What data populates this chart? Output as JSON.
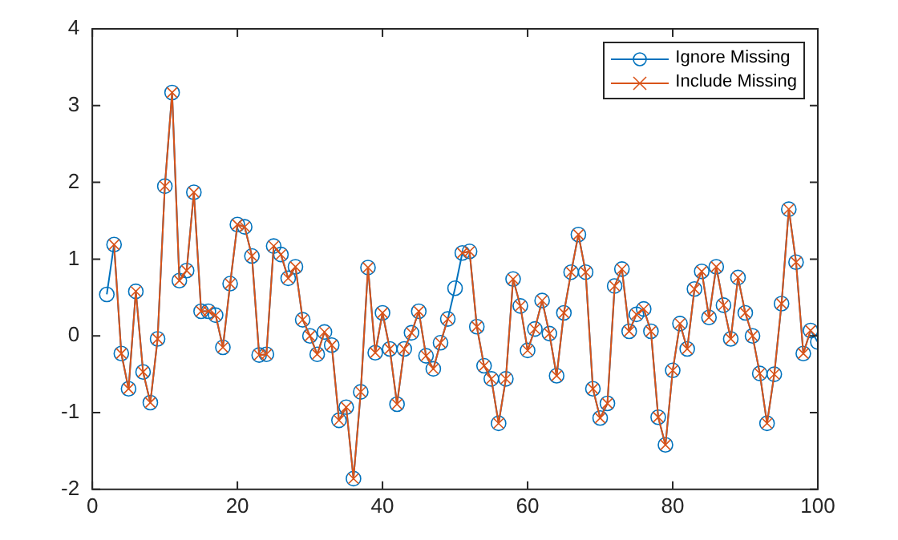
{
  "chart_data": {
    "type": "line",
    "x": [
      2,
      3,
      4,
      5,
      6,
      7,
      8,
      9,
      10,
      11,
      12,
      13,
      14,
      15,
      16,
      17,
      18,
      19,
      20,
      21,
      22,
      23,
      24,
      25,
      26,
      27,
      28,
      29,
      30,
      31,
      32,
      33,
      34,
      35,
      36,
      37,
      38,
      39,
      40,
      41,
      42,
      43,
      44,
      45,
      46,
      47,
      48,
      49,
      50,
      51,
      52,
      53,
      54,
      55,
      56,
      57,
      58,
      59,
      60,
      61,
      62,
      63,
      64,
      65,
      66,
      67,
      68,
      69,
      70,
      71,
      72,
      73,
      74,
      75,
      76,
      77,
      78,
      79,
      80,
      81,
      82,
      83,
      84,
      85,
      86,
      87,
      88,
      89,
      90,
      91,
      92,
      93,
      94,
      95,
      96,
      97,
      98,
      99,
      100
    ],
    "series": [
      {
        "name": "Ignore Missing",
        "color": "#0072bd",
        "marker": "circle",
        "values": [
          0.54,
          1.19,
          -0.23,
          -0.69,
          0.58,
          -0.47,
          -0.87,
          -0.04,
          1.95,
          3.17,
          0.72,
          0.85,
          1.87,
          0.32,
          0.32,
          0.27,
          -0.15,
          0.68,
          1.45,
          1.42,
          1.04,
          -0.25,
          -0.24,
          1.17,
          1.06,
          0.75,
          0.9,
          0.21,
          0.0,
          -0.24,
          0.05,
          -0.12,
          -1.1,
          -0.93,
          -1.86,
          -0.73,
          0.89,
          -0.22,
          0.3,
          -0.17,
          -0.89,
          -0.17,
          0.04,
          0.32,
          -0.26,
          -0.43,
          -0.09,
          0.22,
          0.62,
          1.08,
          1.1,
          0.12,
          -0.39,
          -0.56,
          -1.14,
          -0.56,
          0.74,
          0.39,
          -0.19,
          0.09,
          0.46,
          0.03,
          -0.52,
          0.3,
          0.83,
          1.32,
          0.83,
          -0.69,
          -1.07,
          -0.88,
          0.65,
          0.87,
          0.06,
          0.28,
          0.35,
          0.06,
          -1.06,
          -1.42,
          -0.45,
          0.16,
          -0.17,
          0.61,
          0.84,
          0.24,
          0.9,
          0.4,
          -0.04,
          0.76,
          0.3,
          0.0,
          -0.49,
          -1.14,
          -0.5,
          0.42,
          1.65,
          0.96,
          -0.23,
          0.07,
          -0.08
        ]
      },
      {
        "name": "Include Missing",
        "color": "#d95319",
        "marker": "cross",
        "values": [
          null,
          1.19,
          -0.23,
          -0.69,
          0.58,
          -0.47,
          -0.87,
          -0.04,
          1.95,
          3.17,
          0.72,
          0.85,
          1.87,
          0.32,
          0.32,
          0.27,
          -0.15,
          0.68,
          1.45,
          1.42,
          1.04,
          -0.25,
          -0.24,
          1.17,
          1.06,
          0.75,
          0.9,
          0.21,
          0.0,
          -0.24,
          0.05,
          -0.12,
          -1.1,
          -0.93,
          -1.86,
          -0.73,
          0.89,
          -0.22,
          0.3,
          -0.17,
          -0.89,
          -0.17,
          0.04,
          0.32,
          -0.26,
          -0.43,
          -0.09,
          0.22,
          null,
          1.08,
          1.1,
          0.12,
          -0.39,
          -0.56,
          -1.14,
          -0.56,
          0.74,
          0.39,
          -0.19,
          0.09,
          0.46,
          0.03,
          -0.52,
          0.3,
          0.83,
          1.32,
          0.83,
          -0.69,
          -1.07,
          -0.88,
          0.65,
          0.87,
          0.06,
          0.28,
          0.35,
          0.06,
          -1.06,
          -1.42,
          -0.45,
          0.16,
          -0.17,
          0.61,
          0.84,
          0.24,
          0.9,
          0.4,
          -0.04,
          0.76,
          0.3,
          0.0,
          -0.49,
          -1.14,
          -0.5,
          0.42,
          1.65,
          0.96,
          -0.23,
          0.07,
          null
        ]
      }
    ],
    "xlim": [
      0,
      100
    ],
    "xticks": [
      0,
      20,
      40,
      60,
      80,
      100
    ],
    "ylim": [
      -2,
      4
    ],
    "yticks": [
      -2,
      -1,
      0,
      1,
      2,
      3,
      4
    ],
    "grid": false,
    "legend": "top right",
    "line_style": "solid"
  }
}
